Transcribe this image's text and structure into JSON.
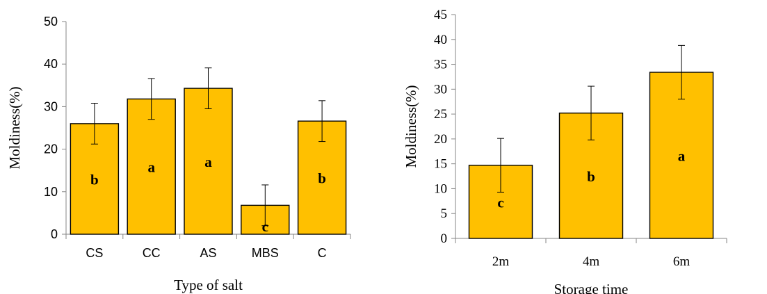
{
  "chart_data": [
    {
      "type": "bar",
      "categories": [
        "CS",
        "CC",
        "AS",
        "MBS",
        "C"
      ],
      "values": [
        26,
        31.8,
        34.3,
        6.8,
        26.6
      ],
      "errors": [
        4.8,
        4.8,
        4.8,
        4.8,
        4.8
      ],
      "sig_labels": [
        "b",
        "a",
        "a",
        "c",
        "b"
      ],
      "xlabel": "Type of salt",
      "ylabel": "Moldiness(%)",
      "ylim": [
        0,
        50
      ],
      "yticks": [
        "0",
        "10",
        "20",
        "30",
        "40",
        "50"
      ],
      "bar_color": "#FFC000",
      "grid": false,
      "legend": false
    },
    {
      "type": "bar",
      "categories": [
        "2m",
        "4m",
        "6m"
      ],
      "values": [
        14.7,
        25.2,
        33.4
      ],
      "errors": [
        5.4,
        5.4,
        5.4
      ],
      "sig_labels": [
        "c",
        "b",
        "a"
      ],
      "xlabel": "Storage time",
      "ylabel": "Moldiness(%)",
      "ylim": [
        0,
        45
      ],
      "yticks": [
        "0",
        "5",
        "10",
        "15",
        "20",
        "25",
        "30",
        "35",
        "40",
        "45"
      ],
      "bar_color": "#FFC000",
      "grid": false,
      "legend": false
    }
  ]
}
